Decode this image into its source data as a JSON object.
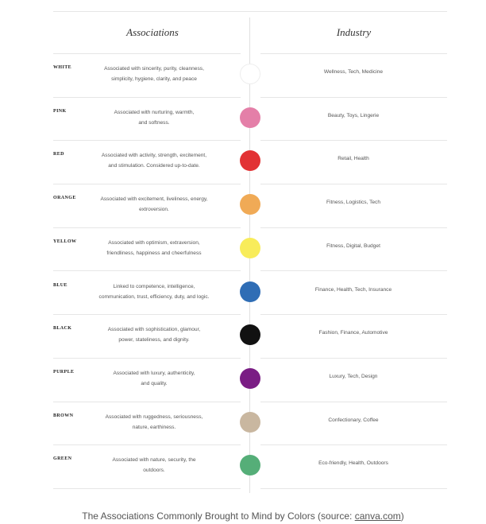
{
  "table": {
    "headers": {
      "associations": "Associations",
      "industry": "Industry"
    },
    "rows": [
      {
        "color_name": "WHITE",
        "associations_line1": "Associated with sincerity, purity, cleanness,",
        "associations_line2": "simplicity, hygiene, clarity, and peace",
        "industry": "Wellness, Tech, Medicine",
        "swatch": "#ffffff"
      },
      {
        "color_name": "PINK",
        "associations_line1": "Associated with nurturing, warmth,",
        "associations_line2": "and softness.",
        "industry": "Beauty, Toys, Lingerie",
        "swatch": "#e47fa8"
      },
      {
        "color_name": "RED",
        "associations_line1": "Associated with activity, strength, excitement,",
        "associations_line2": "and stimulation. Considered up-to-date.",
        "industry": "Retail, Health",
        "swatch": "#e23234"
      },
      {
        "color_name": "ORANGE",
        "associations_line1": "Associated with excitement, liveliness, energy,",
        "associations_line2": "extroversion.",
        "industry": "Fitness, Logistics, Tech",
        "swatch": "#f0aa56"
      },
      {
        "color_name": "YELLOW",
        "associations_line1": "Associated with optimism, extraversion,",
        "associations_line2": "friendliness, happiness and cheerfulness",
        "industry": "Fitness, Digital, Budget",
        "swatch": "#f8ec5a"
      },
      {
        "color_name": "BLUE",
        "associations_line1": "Linked to competence, intelligence,",
        "associations_line2": "communication, trust, efficiency, duty, and logic.",
        "industry": "Finance, Health, Tech, Insurance",
        "swatch": "#2f6db5"
      },
      {
        "color_name": "BLACK",
        "associations_line1": "Associated with sophistication, glamour,",
        "associations_line2": "power, stateliness, and dignity.",
        "industry": "Fashion, Finance, Automotive",
        "swatch": "#111111"
      },
      {
        "color_name": "PURPLE",
        "associations_line1": "Associated with luxury, authenticity,",
        "associations_line2": "and quality.",
        "industry": "Luxury, Tech, Design",
        "swatch": "#7a1d84"
      },
      {
        "color_name": "BROWN",
        "associations_line1": "Associated with ruggedness, seriousness,",
        "associations_line2": "nature, earthiness.",
        "industry": "Confectionary, Coffee",
        "swatch": "#c9b7a0"
      },
      {
        "color_name": "GREEN",
        "associations_line1": "Associated with nature, security, the",
        "associations_line2": "outdoors.",
        "industry": "Eco-friendly, Health, Outdoors",
        "swatch": "#55ae78"
      }
    ]
  },
  "caption": {
    "text": "The Associations Commonly Brought to Mind by Colors (source: ",
    "link": "canva.com",
    "suffix": ")"
  }
}
